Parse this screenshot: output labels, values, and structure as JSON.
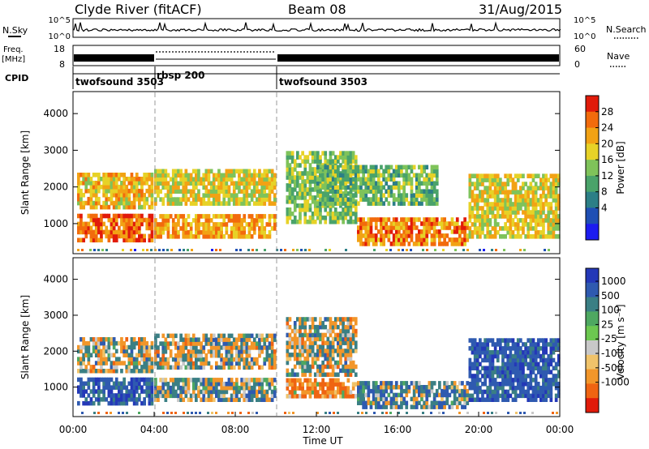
{
  "header": {
    "station": "Clyde River (fitACF)",
    "beam": "Beam 08",
    "date": "31/Aug/2015"
  },
  "panels": {
    "nsky": {
      "label": "N.Sky",
      "ticks_left": [
        "10^5",
        "10^0"
      ],
      "right_label": "N.Search",
      "ticks_right": [
        "10^5",
        "10^0"
      ]
    },
    "freq": {
      "label_line1": "Freq.",
      "label_line2": "[MHz]",
      "ticks_left": [
        "18",
        "8"
      ],
      "right_label": "Nave",
      "ticks_right": [
        "60",
        "0"
      ]
    },
    "cpid": {
      "label": "CPID",
      "segments": [
        {
          "name": "twofsound 3503",
          "start": 0,
          "end": 4
        },
        {
          "name": "rbsp 200",
          "start": 4,
          "end": 10
        },
        {
          "name": "twofsound 3503",
          "start": 10,
          "end": 24
        }
      ]
    }
  },
  "axes": {
    "x_ticks": [
      "00:00",
      "04:00",
      "08:00",
      "12:00",
      "16:00",
      "20:00",
      "00:00"
    ],
    "x_label": "Time UT",
    "y_ticks": [
      "1000",
      "2000",
      "3000",
      "4000"
    ],
    "y_label": "Slant Range [km]",
    "y_range": [
      180,
      4600
    ],
    "x_range_hours": [
      0,
      24
    ]
  },
  "colorbars": {
    "power": {
      "label": "Power [dB]",
      "ticks": [
        "4",
        "8",
        "12",
        "16",
        "20",
        "24",
        "28"
      ],
      "colors": [
        "#1c1cf0",
        "#1f4fb4",
        "#2c7f86",
        "#4aa36a",
        "#7fc35a",
        "#e7d227",
        "#f2a214",
        "#f26b0c",
        "#e11b0a"
      ]
    },
    "velocity": {
      "label": "Velocity [m s⁻¹]",
      "ticks": [
        "1000",
        "500",
        "100",
        "25",
        "-25",
        "-100",
        "-500",
        "-1000"
      ],
      "colors": [
        "#2438b8",
        "#2f5ab0",
        "#3a7f84",
        "#4ea861",
        "#6cc850",
        "#c8c8c8",
        "#f0c36a",
        "#f2962a",
        "#ef6412",
        "#e11b0a"
      ]
    }
  },
  "chart_data": {
    "type": "heatmap",
    "title": "Clyde River (fitACF)",
    "xlabel": "Time UT",
    "ylabel": "Slant Range [km]",
    "xlim": [
      0,
      24
    ],
    "ylim": [
      180,
      4600
    ],
    "series": [
      {
        "name": "Power [dB]",
        "bands": [
          {
            "t0": 0.2,
            "t1": 3.9,
            "r0": 500,
            "r1": 1300,
            "value": 28
          },
          {
            "t0": 0.2,
            "t1": 3.9,
            "r0": 1400,
            "r1": 2400,
            "value": 22
          },
          {
            "t0": 4.0,
            "t1": 10.0,
            "r0": 600,
            "r1": 1300,
            "value": 24
          },
          {
            "t0": 4.0,
            "t1": 10.0,
            "r0": 1500,
            "r1": 2500,
            "value": 20
          },
          {
            "t0": 10.5,
            "t1": 14.0,
            "r0": 1000,
            "r1": 3000,
            "value": 16
          },
          {
            "t0": 14.0,
            "t1": 19.5,
            "r0": 400,
            "r1": 1200,
            "value": 26
          },
          {
            "t0": 12.0,
            "t1": 18.0,
            "r0": 1500,
            "r1": 2600,
            "value": 14
          },
          {
            "t0": 19.5,
            "t1": 24.0,
            "r0": 600,
            "r1": 2400,
            "value": 20
          }
        ]
      },
      {
        "name": "Velocity [m s⁻¹]",
        "bands": [
          {
            "t0": 0.2,
            "t1": 3.9,
            "r0": 500,
            "r1": 1300,
            "value": 500
          },
          {
            "t0": 0.2,
            "t1": 3.9,
            "r0": 1400,
            "r1": 2400,
            "value": 0
          },
          {
            "t0": 4.0,
            "t1": 10.0,
            "r0": 600,
            "r1": 1300,
            "value": 100
          },
          {
            "t0": 4.0,
            "t1": 10.0,
            "r0": 1500,
            "r1": 2500,
            "value": 0
          },
          {
            "t0": 10.5,
            "t1": 14.0,
            "r0": 700,
            "r1": 1200,
            "value": -300
          },
          {
            "t0": 10.5,
            "t1": 14.0,
            "r0": 1300,
            "r1": 3000,
            "value": 0
          },
          {
            "t0": 14.0,
            "t1": 19.5,
            "r0": 400,
            "r1": 1200,
            "value": 200
          },
          {
            "t0": 19.5,
            "t1": 24.0,
            "r0": 600,
            "r1": 2400,
            "value": 500
          }
        ]
      }
    ]
  }
}
